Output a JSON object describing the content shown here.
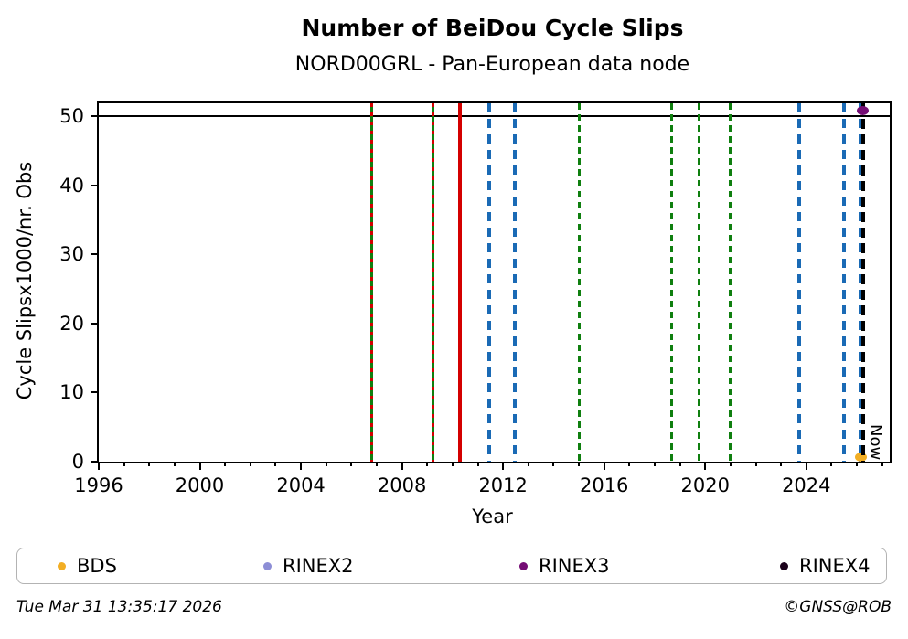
{
  "chart_data": {
    "type": "scatter",
    "title": "Number of BeiDou Cycle Slips",
    "subtitle": "NORD00GRL - Pan-European data node",
    "xlabel": "Year",
    "ylabel": "Cycle Slipsx1000/nr. Obs",
    "xlim": [
      1996,
      2027.3
    ],
    "ylim": [
      0,
      51.9
    ],
    "x_major_ticks": [
      1996,
      2000,
      2004,
      2008,
      2012,
      2016,
      2020,
      2024
    ],
    "x_minor_step": 1,
    "y_ticks": [
      0,
      10,
      20,
      30,
      40,
      50
    ],
    "grid": false,
    "legend_position": "bottom",
    "hline": {
      "y": 50,
      "color": "#000000",
      "width": 2
    },
    "now_line": {
      "x": 2026.25,
      "label": "Now",
      "style": {
        "width": 4,
        "segments": [
          [
            "#000000",
            11
          ],
          [
            "transparent",
            6
          ]
        ]
      }
    },
    "line_styles": {
      "green-dashed": {
        "width": 3,
        "segments": [
          [
            "#0f7f0f",
            7
          ],
          [
            "transparent",
            5
          ]
        ]
      },
      "blue-dashed": {
        "width": 4,
        "segments": [
          [
            "#1a6ab5",
            10
          ],
          [
            "transparent",
            7
          ]
        ]
      },
      "red-solid": {
        "width": 4,
        "segments": [
          [
            "#d40000",
            1
          ]
        ]
      },
      "green-red-dashed": {
        "width": 3,
        "segments": [
          [
            "#d40000",
            4
          ],
          [
            "#0f7f0f",
            6
          ]
        ]
      }
    },
    "events": [
      {
        "x": 2006.79,
        "style": "green-red-dashed"
      },
      {
        "x": 2009.23,
        "style": "green-red-dashed"
      },
      {
        "x": 2010.28,
        "style": "red-solid"
      },
      {
        "x": 2011.44,
        "style": "blue-dashed"
      },
      {
        "x": 2012.45,
        "style": "blue-dashed"
      },
      {
        "x": 2015.0,
        "style": "green-dashed"
      },
      {
        "x": 2018.67,
        "style": "green-dashed"
      },
      {
        "x": 2019.76,
        "style": "green-dashed"
      },
      {
        "x": 2021.0,
        "style": "green-dashed"
      },
      {
        "x": 2023.7,
        "style": "blue-dashed"
      },
      {
        "x": 2025.5,
        "style": "blue-dashed"
      },
      {
        "x": 2026.15,
        "style": "blue-dashed"
      }
    ],
    "points": [
      {
        "series": "BDS",
        "x": 2026.15,
        "y": 0.7,
        "color": "#f2ae24"
      },
      {
        "series": "RINEX3",
        "x": 2026.25,
        "y": 50.9,
        "color": "#750d75"
      }
    ]
  },
  "legend": {
    "entries": [
      {
        "label": "BDS",
        "color": "#f2ae24"
      },
      {
        "label": "RINEX2",
        "color": "#8d8ed6"
      },
      {
        "label": "RINEX3",
        "color": "#750d75"
      },
      {
        "label": "RINEX4",
        "color": "#1c021c"
      }
    ]
  },
  "footer": {
    "timestamp": "Tue Mar 31 13:35:17 2026",
    "credit": "©GNSS@ROB"
  }
}
